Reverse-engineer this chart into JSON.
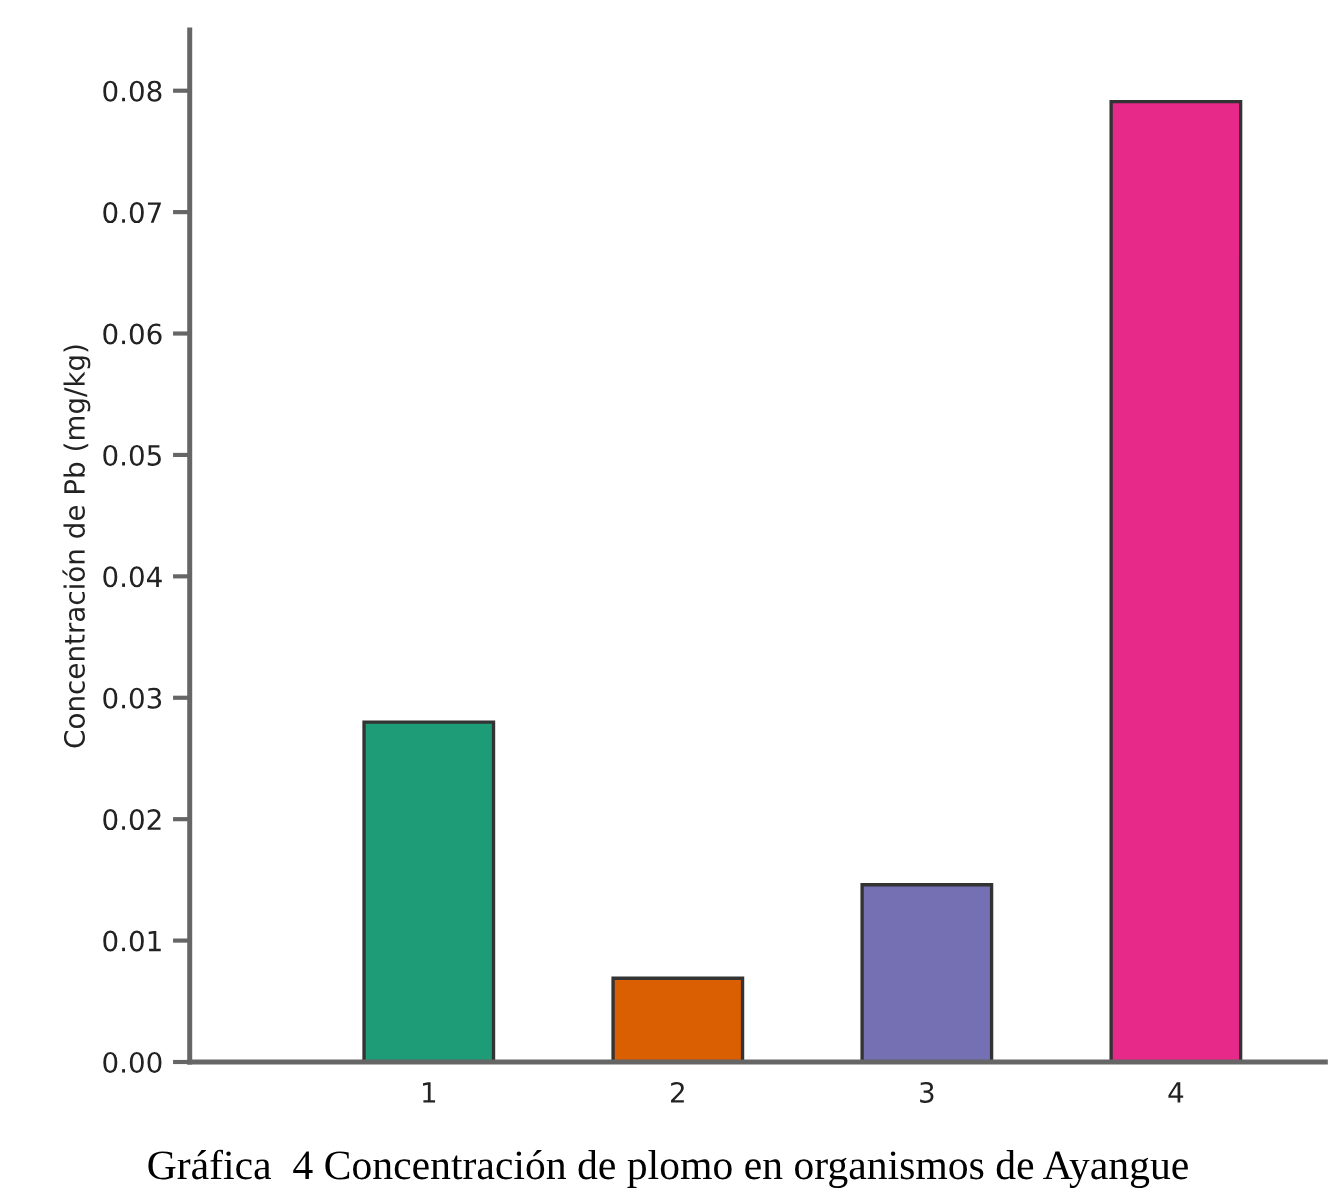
{
  "chart_data": {
    "type": "bar",
    "ylabel": "Concentración de Pb (mg/kg)",
    "categories": [
      "1",
      "2",
      "3",
      "4"
    ],
    "values": [
      0.028,
      0.0069,
      0.0146,
      0.0791
    ],
    "colors": [
      "#1e9c78",
      "#d95f02",
      "#7570b3",
      "#e7298a"
    ],
    "ylim": [
      0,
      0.085
    ],
    "yticks": [
      {
        "value": 0,
        "label": "0.00"
      },
      {
        "value": 0.01,
        "label": "0.01"
      },
      {
        "value": 0.02,
        "label": "0.02"
      },
      {
        "value": 0.03,
        "label": "0.03"
      },
      {
        "value": 0.04,
        "label": "0.04"
      },
      {
        "value": 0.05,
        "label": "0.05"
      },
      {
        "value": 0.06,
        "label": "0.06"
      },
      {
        "value": 0.07,
        "label": "0.07"
      },
      {
        "value": 0.08,
        "label": "0.08"
      }
    ],
    "grid": false,
    "annotations": [
      "Gráfica  4 Concentración de plomo en organismos de Ayangue"
    ]
  }
}
